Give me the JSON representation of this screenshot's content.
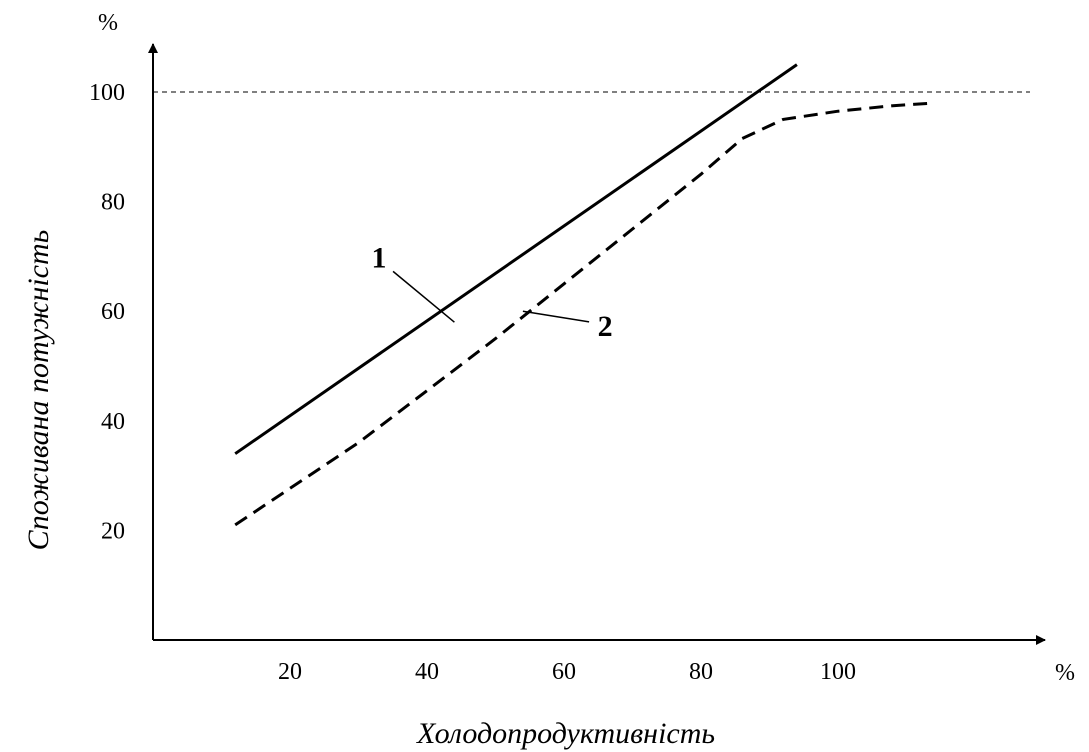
{
  "chart_data": {
    "type": "line",
    "title": "",
    "xlabel": "Холодопродуктивність",
    "ylabel": "Споживана потужність",
    "x_unit": "%",
    "y_unit": "%",
    "xlim": [
      0,
      160
    ],
    "ylim": [
      0,
      120
    ],
    "x_ticks": [
      20,
      40,
      60,
      80,
      100
    ],
    "y_ticks": [
      20,
      40,
      60,
      80,
      100
    ],
    "reference_line": {
      "y": 100,
      "style": "dashed"
    },
    "grid": false,
    "legend": "none",
    "series": [
      {
        "name": "1",
        "style": "solid",
        "points": [
          [
            12,
            34
          ],
          [
            94,
            105
          ]
        ],
        "leader_from": [
          44,
          58
        ],
        "label_at": [
          33,
          68
        ]
      },
      {
        "name": "2",
        "style": "dashed",
        "points": [
          [
            12,
            21
          ],
          [
            30,
            36
          ],
          [
            50,
            55
          ],
          [
            70,
            75
          ],
          [
            80,
            85
          ],
          [
            86,
            91.5
          ],
          [
            92,
            95
          ],
          [
            100,
            96.5
          ],
          [
            108,
            97.5
          ],
          [
            114,
            98
          ]
        ],
        "leader_from": [
          54,
          60
        ],
        "label_at": [
          66,
          55.5
        ]
      }
    ]
  }
}
